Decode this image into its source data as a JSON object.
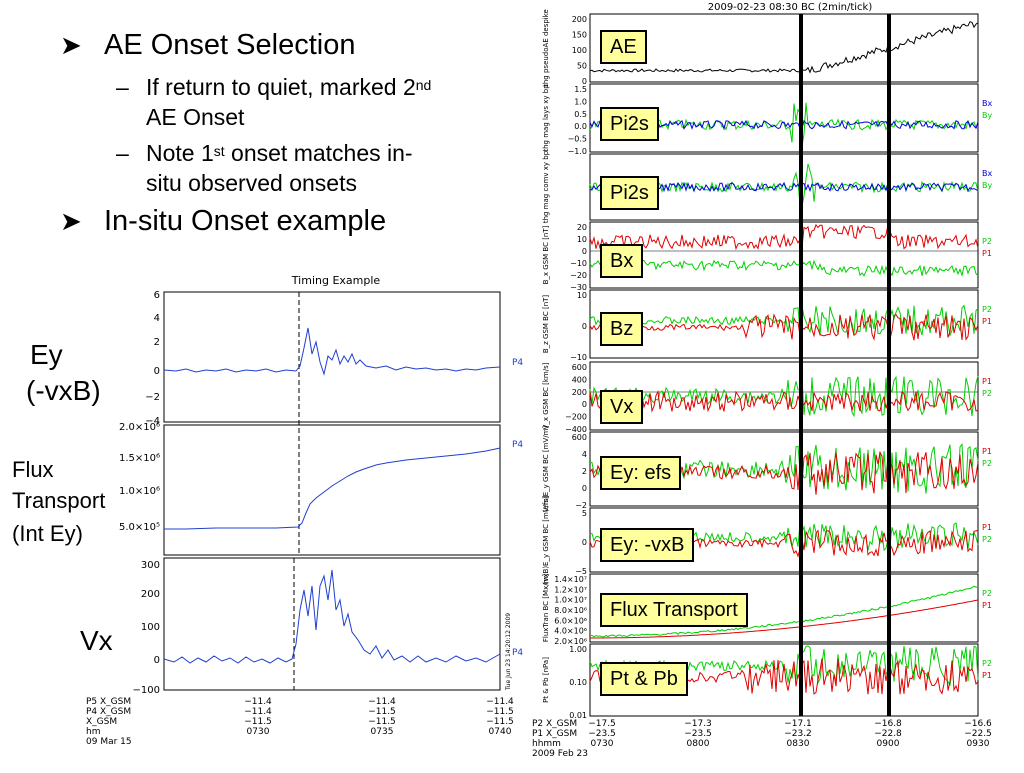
{
  "slide": {
    "bullet1": "AE Onset Selection",
    "sub1_main": "If return to quiet, marked 2",
    "sub1_sup": "nd",
    "sub1_end": "AE Onset",
    "sub2_main": "Note 1",
    "sub2_sup": "st",
    "sub2_mid": "onset matches in-",
    "sub2_end": "situ observed onsets",
    "bullet2": "In-situ Onset example"
  },
  "side_labels": {
    "ey": "Ey",
    "vxb": "(-vxB)",
    "flux1": "Flux",
    "flux2": "Transport",
    "flux3": "(Int Ey)",
    "vx": "Vx"
  },
  "left_plot": {
    "title": "Timing Example",
    "panel1_ticks": [
      "6",
      "4",
      "2",
      "0",
      "−2",
      "−4"
    ],
    "panel2_ticks": [
      "2.0×10⁶",
      "1.5×10⁶",
      "1.0×10⁶",
      "5.0×10⁵"
    ],
    "panel3_ticks": [
      "300",
      "200",
      "100",
      "0",
      "−100"
    ],
    "probe_label": "P4",
    "footer_rows": [
      [
        "P5 X_GSM",
        "−11.4",
        "−11.4",
        "−11.4"
      ],
      [
        "P4 X_GSM",
        "−11.4",
        "−11.5",
        "−11.5"
      ],
      [
        "   X_GSM",
        "−11.5",
        "−11.5",
        "−11.5"
      ],
      [
        "   hm",
        "0730",
        "0735",
        "0740"
      ]
    ],
    "date": "09 Mar 15",
    "side_stamp": "Tue Jun 23 14:20:12 2009",
    "colors": {
      "trace": "#1f3fd0",
      "axis": "#000"
    }
  },
  "right_plot": {
    "title": "2009-02-23 08:30 BC (2min/tick)",
    "boxes": [
      "AE",
      "Pi2s",
      "Pi2s",
      "Bx",
      "Bz",
      "Vx",
      "Ey: efs",
      "Ey: -vxB",
      "Flux Transport",
      "Pt & Pb"
    ],
    "ylabels": [
      "thg pseudoAE despike",
      "thg mag lays xy bp",
      "thg mag comv xy bp",
      "B_x GSM BC [nT]",
      "B_z GSM BC [nT]",
      "V_x GSM BC [km/s]",
      "(efs)E_y GSM BC [mV/m]",
      "(vxB)E_y GSM BC [mV/m]",
      "FluxTran BC [Mx/m]",
      "Pt & Pb [nPa]"
    ],
    "ticks": [
      [
        "200",
        "150",
        "100",
        "50",
        "0"
      ],
      [
        "1.5",
        "1.0",
        "0.5",
        "0.0",
        "−0.5",
        "−1.0"
      ],
      [],
      [
        "20",
        "10",
        "0",
        "−10",
        "−20",
        "−30"
      ],
      [
        "10",
        "0",
        "−10"
      ],
      [
        "600",
        "400",
        "200",
        "0",
        "−200",
        "−400"
      ],
      [
        "600",
        "4",
        "2",
        "0",
        "−2"
      ],
      [
        "5",
        "0",
        "−5"
      ],
      [
        "1.4×10⁷",
        "1.2×10⁷",
        "1.0×10⁷",
        "8.0×10⁶",
        "6.0×10⁶",
        "4.0×10⁶",
        "2.0×10⁶"
      ],
      [
        "1.00",
        "0.10",
        "0.01"
      ]
    ],
    "legends": [
      [],
      [
        "Bx",
        "By"
      ],
      [
        "Bx",
        "By"
      ],
      [
        "P2",
        "P1"
      ],
      [
        "P2",
        "P1"
      ],
      [
        "P1",
        "P2"
      ],
      [
        "P1",
        "P2"
      ],
      [
        "P1",
        "P2"
      ],
      [
        "P2",
        "P1"
      ],
      [
        "P2",
        "P1"
      ]
    ],
    "footer_rows": [
      [
        "P2 X_GSM",
        "−17.5",
        "−17.3",
        "−17.1",
        "−16.8",
        "−16.6"
      ],
      [
        "P1 X_GSM",
        "−23.5",
        "−23.5",
        "−23.2",
        "−22.8",
        "−22.5"
      ],
      [
        "hhmm",
        "0730",
        "0800",
        "0830",
        "0900",
        "0930"
      ]
    ],
    "date": "2009 Feb 23",
    "colors": {
      "red": "#e00000",
      "green": "#00d000",
      "blue": "#0000dd",
      "black": "#000"
    }
  }
}
